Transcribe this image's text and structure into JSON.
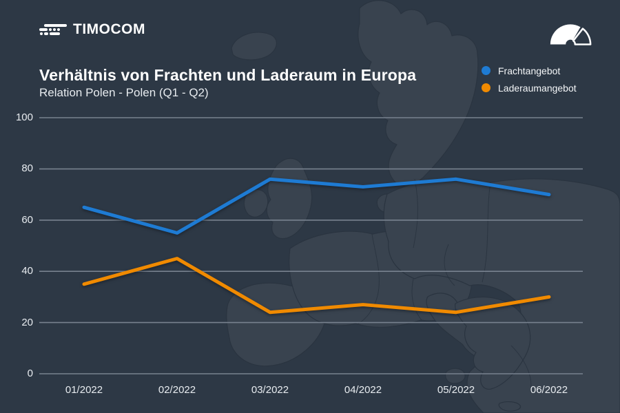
{
  "brand": {
    "name": "TIMOCOM",
    "logo_icon": "speed-lines-truck-icon"
  },
  "header": {
    "title": "Verhältnis von Frachten und Laderaum in Europa",
    "subtitle": "Relation Polen - Polen (Q1 - Q2)",
    "gauge_icon": "barometer-gauge-icon"
  },
  "colors": {
    "background": "#2d3845",
    "map_fill": "#39434f",
    "map_border": "#222c37",
    "gridline": "#78828f",
    "axis_text": "#e8ecf0",
    "accent_blue": "#1e7bd3",
    "accent_orange": "#f08a00"
  },
  "chart_data": {
    "type": "line",
    "title": "Verhältnis von Frachten und Laderaum in Europa",
    "subtitle": "Relation Polen - Polen (Q1 - Q2)",
    "x": [
      "01/2022",
      "02/2022",
      "03/2022",
      "04/2022",
      "05/2022",
      "06/2022"
    ],
    "series": [
      {
        "name": "Frachtangebot",
        "color": "#1e7bd3",
        "values": [
          65,
          55,
          76,
          73,
          76,
          70
        ]
      },
      {
        "name": "Laderaumangebot",
        "color": "#f08a00",
        "values": [
          35,
          45,
          24,
          27,
          24,
          30
        ]
      }
    ],
    "ylim": [
      0,
      100
    ],
    "yticks": [
      0,
      20,
      40,
      60,
      80,
      100
    ],
    "grid": "horizontal",
    "legend_position": "top-right"
  }
}
